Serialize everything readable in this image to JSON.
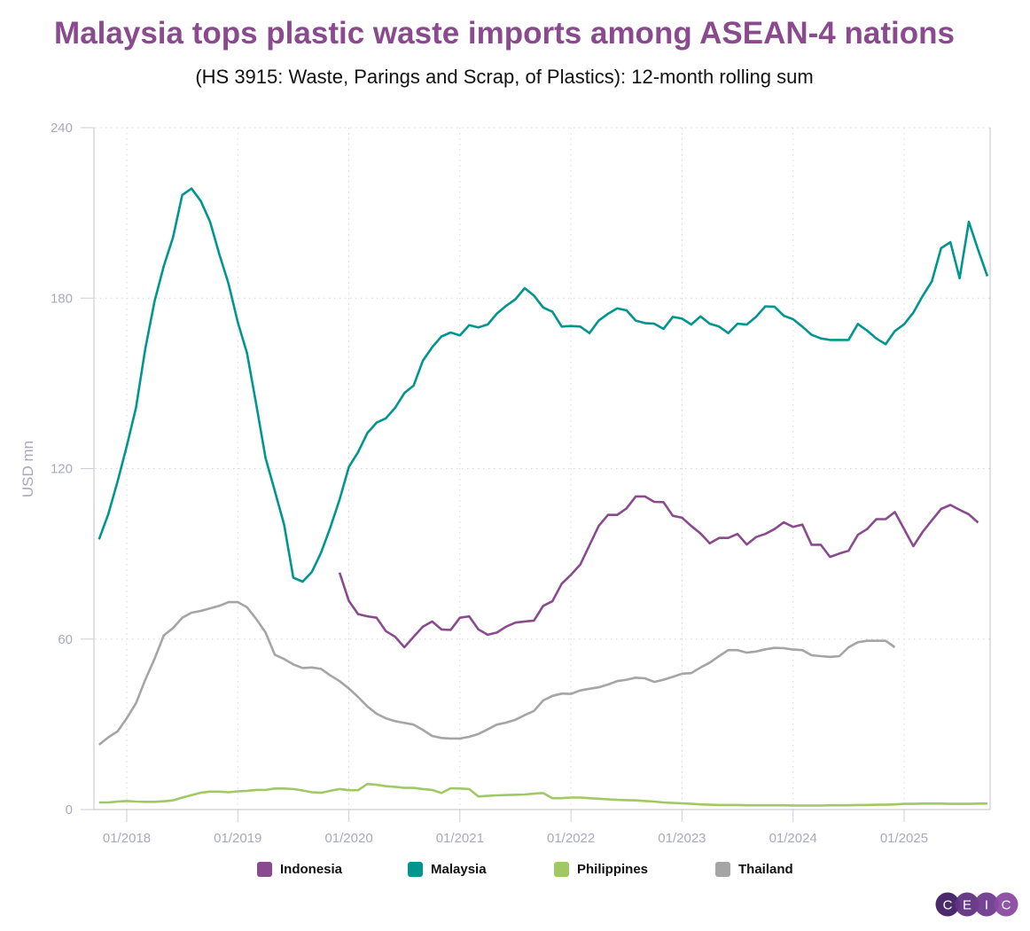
{
  "title": "Malaysia tops plastic waste imports among ASEAN-4 nations",
  "subtitle": "(HS 3915: Waste, Parings and Scrap, of Plastics): 12-month rolling sum",
  "logo_text": "CEIC",
  "chart_data": {
    "type": "line",
    "title": "Malaysia tops plastic waste imports among ASEAN-4 nations",
    "subtitle": "(HS 3915: Waste, Parings and Scrap, of Plastics): 12-month rolling sum",
    "xlabel": "",
    "ylabel": "USD mn",
    "ylim": [
      0,
      240
    ],
    "yticks": [
      0,
      60,
      120,
      180,
      240
    ],
    "ytick_labels": [
      "0",
      "60",
      "120",
      "180",
      "240"
    ],
    "xticks": [
      "2018-01",
      "2019-01",
      "2020-01",
      "2021-01",
      "2022-01",
      "2023-01",
      "2024-01",
      "2025-01"
    ],
    "xtick_labels": [
      "01/2018",
      "01/2019",
      "01/2020",
      "01/2021",
      "01/2022",
      "01/2023",
      "01/2024",
      "01/2025"
    ],
    "x_frequency": "monthly",
    "grid": true,
    "legend_position": "bottom",
    "series": [
      {
        "name": "Indonesia",
        "color": "#8a4a8e",
        "start": "2019-12",
        "values": [
          83.4,
          73.4,
          68.8,
          68.0,
          67.5,
          62.8,
          60.8,
          57.1,
          60.8,
          64.4,
          66.2,
          63.4,
          63.2,
          67.5,
          68.0,
          63.4,
          61.5,
          62.3,
          64.4,
          65.8,
          66.2,
          66.5,
          71.7,
          73.3,
          79.5,
          82.6,
          86.2,
          93.0,
          99.8,
          103.7,
          103.7,
          106.0,
          110.2,
          110.2,
          108.3,
          108.2,
          103.4,
          102.7,
          99.8,
          97.2,
          93.7,
          95.6,
          95.6,
          97.0,
          93.3,
          95.9,
          97.0,
          98.7,
          101.1,
          99.5,
          100.3,
          93.2,
          93.2,
          88.9,
          90.1,
          91.1,
          96.7,
          98.7,
          102.2,
          102.2,
          104.7,
          98.7,
          92.7,
          97.7,
          101.8,
          105.8,
          107.2,
          105.5,
          103.9,
          101.0
        ]
      },
      {
        "name": "Malaysia",
        "color": "#00968f",
        "start": "2017-10",
        "values": [
          95.1,
          103.9,
          115.4,
          127.9,
          141.4,
          162.2,
          178.8,
          191.3,
          201.4,
          216.3,
          218.6,
          214.2,
          206.9,
          195.5,
          185.1,
          171.5,
          160.6,
          142.4,
          123.7,
          112.2,
          100.3,
          81.6,
          80.2,
          83.6,
          90.4,
          99.3,
          109.1,
          120.6,
          125.8,
          132.5,
          136.2,
          137.7,
          141.4,
          146.6,
          149.2,
          158.0,
          162.7,
          166.5,
          167.9,
          166.9,
          170.5,
          169.7,
          170.7,
          174.6,
          177.3,
          179.6,
          183.5,
          180.9,
          176.7,
          175.2,
          170.0,
          170.2,
          170.0,
          167.7,
          172.1,
          174.5,
          176.4,
          175.7,
          172.1,
          171.2,
          171.0,
          169.2,
          173.4,
          172.8,
          170.7,
          173.6,
          171.0,
          170.0,
          167.7,
          171.0,
          170.7,
          173.4,
          177.1,
          177.0,
          173.8,
          172.6,
          170.0,
          167.1,
          165.8,
          165.3,
          165.3,
          165.3,
          170.9,
          168.6,
          165.8,
          163.8,
          168.4,
          170.8,
          174.9,
          180.7,
          185.9,
          197.6,
          199.7,
          187.0,
          206.9,
          197.0,
          187.7
        ]
      },
      {
        "name": "Philippines",
        "color": "#a0c964",
        "start": "2017-10",
        "values": [
          2.5,
          2.5,
          2.8,
          3.0,
          2.8,
          2.7,
          2.7,
          2.9,
          3.2,
          4.2,
          5.1,
          5.9,
          6.3,
          6.3,
          6.1,
          6.4,
          6.6,
          6.9,
          6.9,
          7.4,
          7.4,
          7.2,
          6.7,
          6.1,
          5.9,
          6.6,
          7.2,
          6.8,
          6.8,
          9.0,
          8.7,
          8.2,
          8.0,
          7.6,
          7.6,
          7.2,
          6.9,
          5.8,
          7.5,
          7.4,
          7.2,
          4.6,
          4.8,
          5.0,
          5.1,
          5.2,
          5.3,
          5.6,
          5.8,
          4.0,
          4.0,
          4.2,
          4.2,
          4.0,
          3.8,
          3.6,
          3.4,
          3.3,
          3.2,
          3.0,
          2.8,
          2.5,
          2.3,
          2.2,
          2.0,
          1.8,
          1.7,
          1.6,
          1.6,
          1.6,
          1.5,
          1.5,
          1.5,
          1.5,
          1.5,
          1.4,
          1.4,
          1.4,
          1.4,
          1.5,
          1.5,
          1.5,
          1.6,
          1.6,
          1.7,
          1.7,
          1.8,
          2.0,
          2.0,
          2.1,
          2.1,
          2.1,
          2.0,
          2.0,
          2.0,
          2.1,
          2.1
        ]
      },
      {
        "name": "Thailand",
        "color": "#a5a5a5",
        "start": "2017-10",
        "values": [
          22.8,
          25.4,
          27.5,
          32.1,
          37.4,
          45.7,
          53.0,
          61.3,
          63.9,
          67.5,
          69.3,
          69.9,
          70.8,
          71.7,
          73.0,
          73.0,
          71.2,
          67.0,
          62.3,
          54.5,
          53.0,
          51.1,
          49.8,
          50.0,
          49.5,
          47.2,
          45.2,
          42.6,
          39.6,
          36.3,
          33.7,
          32.1,
          31.1,
          30.5,
          29.9,
          28.0,
          25.9,
          25.2,
          25.0,
          25.0,
          25.6,
          26.6,
          28.2,
          29.9,
          30.6,
          31.6,
          33.2,
          34.7,
          38.4,
          40.0,
          40.8,
          40.7,
          41.9,
          42.5,
          43.0,
          44.0,
          45.2,
          45.7,
          46.4,
          46.2,
          44.9,
          45.7,
          46.7,
          47.8,
          48.0,
          50.0,
          51.7,
          54.0,
          56.1,
          56.1,
          55.2,
          55.6,
          56.4,
          56.9,
          56.8,
          56.3,
          56.1,
          54.3,
          54.0,
          53.7,
          54.0,
          57.1,
          58.9,
          59.4,
          59.4,
          59.4,
          57.1
        ]
      }
    ]
  }
}
